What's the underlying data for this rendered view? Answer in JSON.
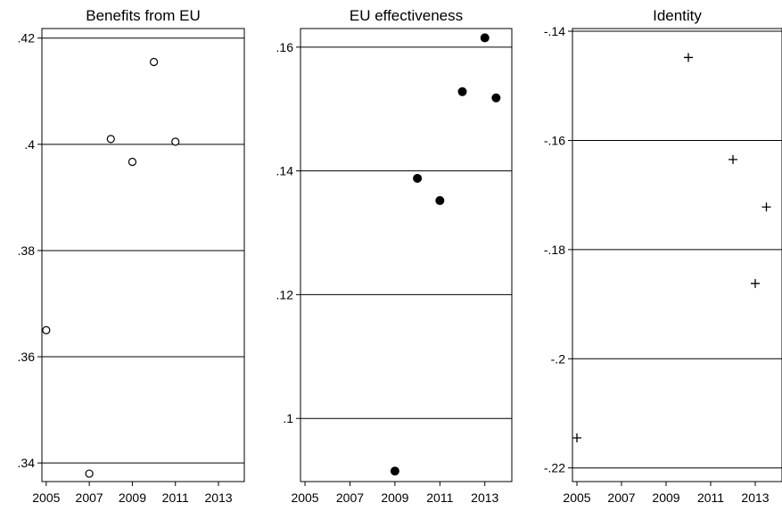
{
  "chart_data": [
    {
      "type": "scatter",
      "title": "Benefits from EU",
      "xlabel": "",
      "ylabel": "",
      "marker": "hollow-circle",
      "xlim": [
        2004.8,
        2014.2
      ],
      "ylim": [
        0.3365,
        0.4218
      ],
      "xticks": [
        2005,
        2007,
        2009,
        2011,
        2013
      ],
      "xtick_labels": [
        "2005",
        "2007",
        "2009",
        "2011",
        "2013"
      ],
      "yticks": [
        0.34,
        0.36,
        0.38,
        0.4,
        0.42
      ],
      "ytick_labels": [
        ".34",
        ".36",
        ".38",
        ".4",
        ".42"
      ],
      "grid": true,
      "points": [
        {
          "x": 2005,
          "y": 0.365
        },
        {
          "x": 2007,
          "y": 0.338
        },
        {
          "x": 2008,
          "y": 0.401
        },
        {
          "x": 2009,
          "y": 0.3967
        },
        {
          "x": 2010,
          "y": 0.4155
        },
        {
          "x": 2011,
          "y": 0.4005
        }
      ]
    },
    {
      "type": "scatter",
      "title": "EU effectiveness",
      "xlabel": "",
      "ylabel": "",
      "marker": "filled-circle",
      "xlim": [
        2004.8,
        2014.2
      ],
      "ylim": [
        0.0898,
        0.163
      ],
      "xticks": [
        2005,
        2007,
        2009,
        2011,
        2013
      ],
      "xtick_labels": [
        "2005",
        "2007",
        "2009",
        "2011",
        "2013"
      ],
      "yticks": [
        0.1,
        0.12,
        0.14,
        0.16
      ],
      "ytick_labels": [
        ".1",
        ".12",
        ".14",
        ".16"
      ],
      "grid": true,
      "points": [
        {
          "x": 2009,
          "y": 0.0915
        },
        {
          "x": 2010,
          "y": 0.1388
        },
        {
          "x": 2011,
          "y": 0.1352
        },
        {
          "x": 2012,
          "y": 0.1528
        },
        {
          "x": 2013,
          "y": 0.1615
        },
        {
          "x": 2013.5,
          "y": 0.1518
        }
      ]
    },
    {
      "type": "scatter",
      "title": "Identity",
      "xlabel": "",
      "ylabel": "",
      "marker": "plus",
      "xlim": [
        2004.8,
        2014.2
      ],
      "ylim": [
        -0.2225,
        -0.1395
      ],
      "xticks": [
        2005,
        2007,
        2009,
        2011,
        2013
      ],
      "xtick_labels": [
        "2005",
        "2007",
        "2009",
        "2011",
        "2013"
      ],
      "yticks": [
        -0.22,
        -0.2,
        -0.18,
        -0.16,
        -0.14
      ],
      "ytick_labels": [
        "-.22",
        "-.2",
        "-.18",
        "-.16",
        "-.14"
      ],
      "grid": true,
      "points": [
        {
          "x": 2005,
          "y": -0.2145
        },
        {
          "x": 2010,
          "y": -0.1448
        },
        {
          "x": 2012,
          "y": -0.1635
        },
        {
          "x": 2013,
          "y": -0.1862
        },
        {
          "x": 2013.5,
          "y": -0.1722
        }
      ]
    }
  ]
}
